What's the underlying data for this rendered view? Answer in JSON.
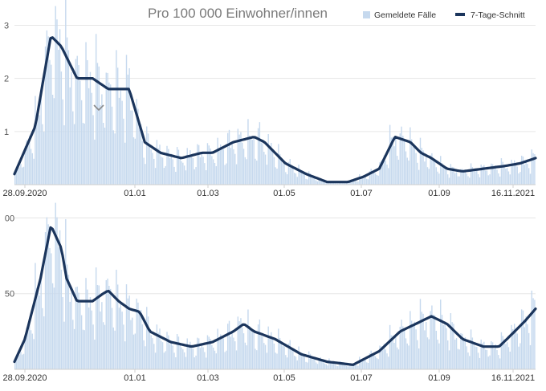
{
  "chart_data": [
    {
      "type": "bar",
      "title": "Pro 100 000 Einwohner/innen",
      "legend": [
        "Gemeldete Fälle",
        "7-Tage-Schnitt"
      ],
      "legend_position": "top-right",
      "x_ticks": [
        "28.09.2020",
        "01.01",
        "01.03",
        "01.05",
        "01.07",
        "01.09",
        "16.11.2021"
      ],
      "y_ticks": [
        "1",
        "2",
        "3"
      ],
      "ylim": [
        0,
        3.4
      ],
      "grid": true,
      "series": [
        {
          "name": "7-Tage-Schnitt",
          "x_frac": [
            0,
            0.04,
            0.07,
            0.09,
            0.12,
            0.15,
            0.18,
            0.22,
            0.25,
            0.28,
            0.32,
            0.36,
            0.38,
            0.42,
            0.46,
            0.48,
            0.52,
            0.56,
            0.6,
            0.64,
            0.67,
            0.7,
            0.73,
            0.76,
            0.78,
            0.8,
            0.83,
            0.86,
            0.9,
            0.94,
            0.97,
            1
          ],
          "values": [
            0.2,
            1.1,
            2.8,
            2.6,
            2.0,
            2.0,
            1.8,
            1.8,
            0.8,
            0.6,
            0.5,
            0.6,
            0.6,
            0.8,
            0.9,
            0.8,
            0.4,
            0.2,
            0.05,
            0.05,
            0.15,
            0.3,
            0.9,
            0.8,
            0.6,
            0.5,
            0.3,
            0.25,
            0.3,
            0.35,
            0.4,
            0.5
          ]
        }
      ]
    },
    {
      "type": "bar",
      "legend": [
        "Gemeldete Fälle",
        "7-Tage-Schnitt"
      ],
      "x_ticks": [
        "28.09.2020",
        "01.01",
        "01.03",
        "01.05",
        "01.07",
        "01.09",
        "16.11.2021"
      ],
      "y_ticks": [
        "50",
        "00"
      ],
      "ylim": [
        0,
        105
      ],
      "grid": true,
      "series": [
        {
          "name": "7-Tage-Schnitt",
          "x_frac": [
            0,
            0.02,
            0.05,
            0.07,
            0.09,
            0.1,
            0.12,
            0.15,
            0.17,
            0.18,
            0.2,
            0.22,
            0.24,
            0.26,
            0.3,
            0.34,
            0.38,
            0.42,
            0.44,
            0.46,
            0.5,
            0.55,
            0.6,
            0.65,
            0.7,
            0.74,
            0.77,
            0.8,
            0.83,
            0.86,
            0.9,
            0.93,
            0.96,
            0.98,
            1
          ],
          "values": [
            5,
            20,
            60,
            95,
            80,
            60,
            45,
            45,
            50,
            52,
            45,
            40,
            38,
            25,
            18,
            15,
            18,
            25,
            30,
            25,
            20,
            10,
            5,
            3,
            12,
            25,
            30,
            35,
            30,
            20,
            15,
            15,
            25,
            32,
            40
          ]
        }
      ]
    }
  ]
}
